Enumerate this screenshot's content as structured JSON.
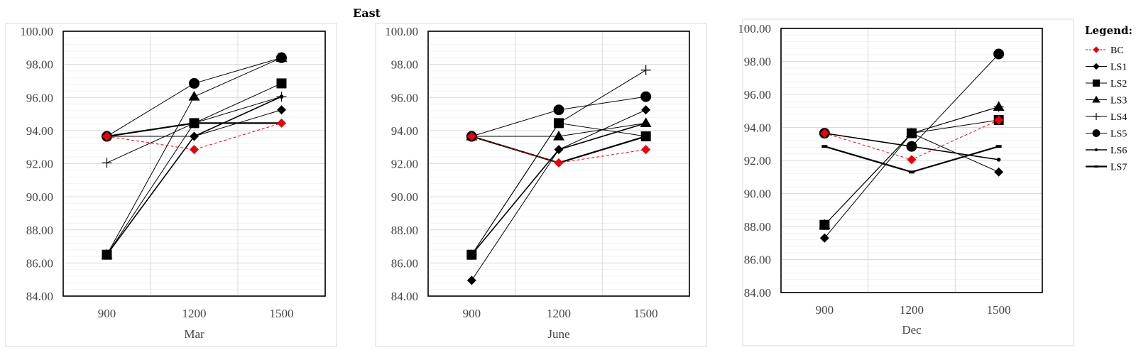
{
  "figure_title": "East",
  "legend": {
    "title": "Legend:",
    "entries": [
      {
        "label": "BC",
        "marker": "diamond",
        "color": "#e8000b",
        "dashed": true,
        "stroke": 1
      },
      {
        "label": "LS1",
        "marker": "diamond",
        "color": "#000000",
        "dashed": false,
        "stroke": 1
      },
      {
        "label": "LS2",
        "marker": "square",
        "color": "#000000",
        "dashed": false,
        "stroke": 1
      },
      {
        "label": "LS3",
        "marker": "triangle",
        "color": "#000000",
        "dashed": false,
        "stroke": 1
      },
      {
        "label": "LS4",
        "marker": "plus",
        "color": "#000000",
        "dashed": false,
        "stroke": 1
      },
      {
        "label": "LS5",
        "marker": "circle",
        "color": "#000000",
        "dashed": false,
        "stroke": 1
      },
      {
        "label": "LS6",
        "marker": "dot",
        "color": "#000000",
        "dashed": false,
        "stroke": 1.6
      },
      {
        "label": "LS7",
        "marker": "dash",
        "color": "#000000",
        "dashed": false,
        "stroke": 2.2
      }
    ]
  },
  "chart_data": [
    {
      "type": "line",
      "title": "",
      "xlabel": "Mar",
      "ylabel": "",
      "categories": [
        "900",
        "1200",
        "1500"
      ],
      "ylim": [
        84,
        100
      ],
      "yticks": [
        "84.00",
        "86.00",
        "88.00",
        "90.00",
        "92.00",
        "94.00",
        "96.00",
        "98.00",
        "100.00"
      ],
      "grid": true,
      "series": [
        {
          "name": "BC",
          "values": [
            93.65,
            92.85,
            94.45
          ]
        },
        {
          "name": "LS1",
          "values": [
            93.65,
            93.65,
            95.25
          ]
        },
        {
          "name": "LS2",
          "values": [
            86.5,
            94.45,
            96.85
          ]
        },
        {
          "name": "LS3",
          "values": [
            86.5,
            96.05,
            98.4
          ]
        },
        {
          "name": "LS4",
          "values": [
            92.05,
            94.45,
            96.05
          ]
        },
        {
          "name": "LS5",
          "values": [
            93.65,
            96.85,
            98.4
          ]
        },
        {
          "name": "LS6",
          "values": [
            86.5,
            93.65,
            96.05
          ]
        },
        {
          "name": "LS7",
          "values": [
            93.65,
            94.45,
            94.45
          ]
        }
      ]
    },
    {
      "type": "line",
      "title": "",
      "xlabel": "June",
      "ylabel": "",
      "categories": [
        "900",
        "1200",
        "1500"
      ],
      "ylim": [
        84,
        100
      ],
      "yticks": [
        "84.00",
        "86.00",
        "88.00",
        "90.00",
        "92.00",
        "94.00",
        "96.00",
        "98.00",
        "100.00"
      ],
      "grid": true,
      "series": [
        {
          "name": "BC",
          "values": [
            93.65,
            92.05,
            92.85
          ]
        },
        {
          "name": "LS1",
          "values": [
            84.95,
            92.85,
            95.25
          ]
        },
        {
          "name": "LS2",
          "values": [
            86.5,
            94.45,
            93.65
          ]
        },
        {
          "name": "LS3",
          "values": [
            93.65,
            93.65,
            94.45
          ]
        },
        {
          "name": "LS4",
          "values": [
            86.5,
            94.45,
            97.65
          ]
        },
        {
          "name": "LS5",
          "values": [
            93.65,
            95.25,
            96.05
          ]
        },
        {
          "name": "LS6",
          "values": [
            86.5,
            92.85,
            94.45
          ]
        },
        {
          "name": "LS7",
          "values": [
            93.65,
            92.05,
            93.65
          ]
        }
      ]
    },
    {
      "type": "line",
      "title": "",
      "xlabel": "Dec",
      "ylabel": "",
      "categories": [
        "900",
        "1200",
        "1500"
      ],
      "ylim": [
        84,
        100
      ],
      "yticks": [
        "84.00",
        "86.00",
        "88.00",
        "90.00",
        "92.00",
        "94.00",
        "96.00",
        "98.00",
        "100.00"
      ],
      "grid": true,
      "series": [
        {
          "name": "BC",
          "values": [
            93.65,
            92.05,
            94.45
          ]
        },
        {
          "name": "LS1",
          "values": [
            87.3,
            93.65,
            91.3
          ]
        },
        {
          "name": "LS2",
          "values": [
            88.1,
            93.65,
            94.45
          ]
        },
        {
          "name": "LS3",
          "values": [
            88.1,
            93.65,
            95.25
          ]
        },
        {
          "name": "LS4",
          "values": [
            88.1,
            93.65,
            95.25
          ]
        },
        {
          "name": "LS5",
          "values": [
            93.65,
            92.85,
            98.45
          ]
        },
        {
          "name": "LS6",
          "values": [
            93.65,
            92.85,
            92.05
          ]
        },
        {
          "name": "LS7",
          "values": [
            92.85,
            91.3,
            92.85
          ]
        }
      ]
    }
  ]
}
